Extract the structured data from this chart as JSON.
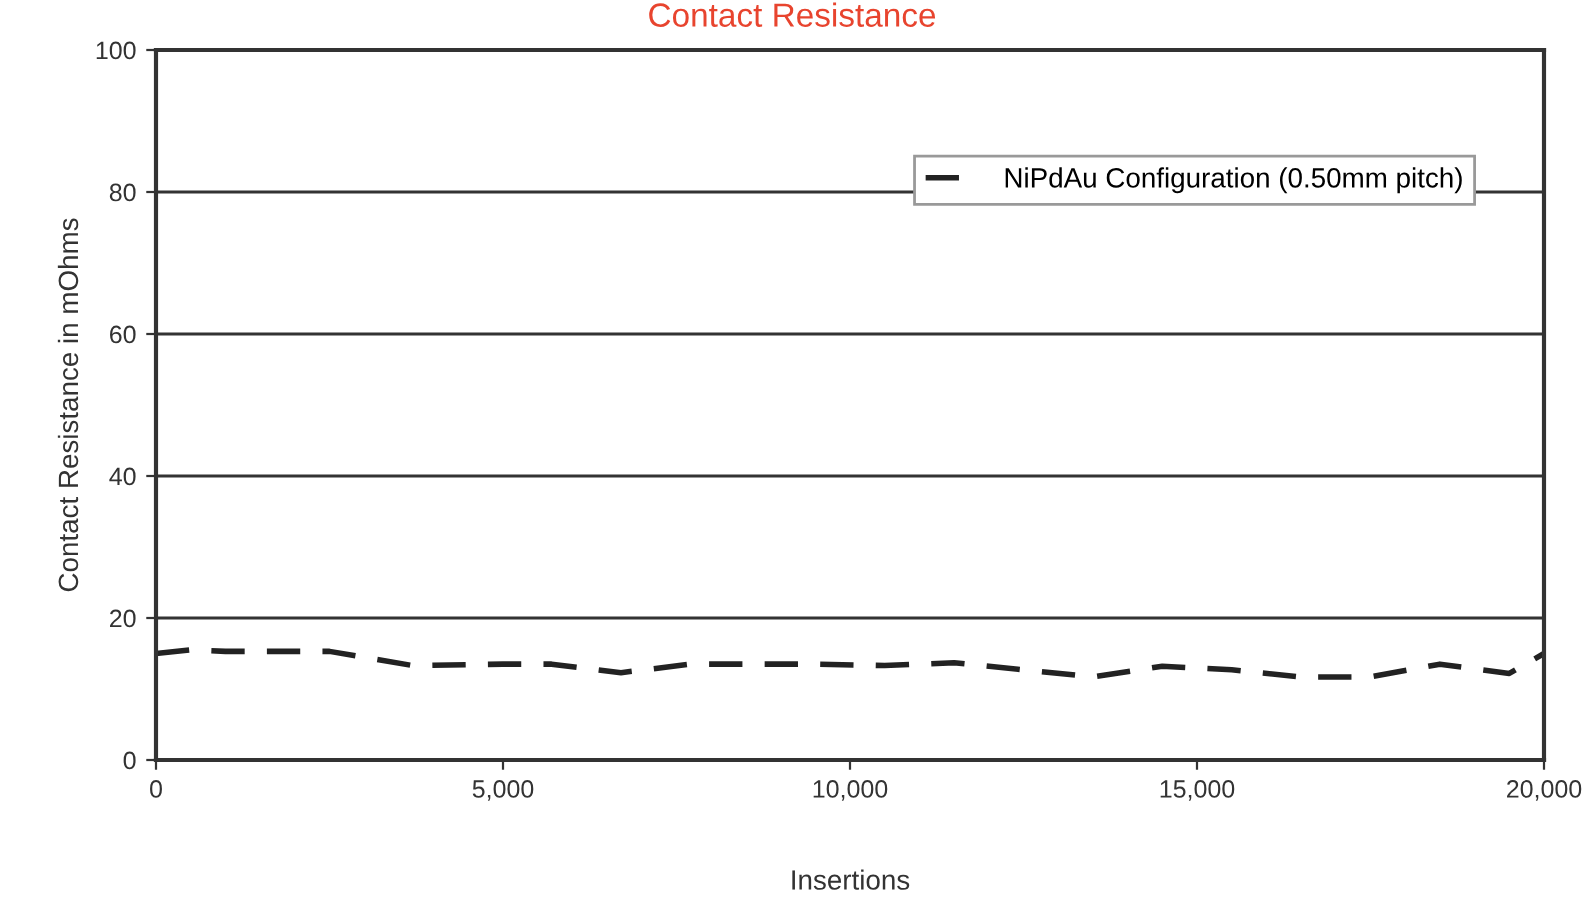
{
  "chart_data": {
    "type": "line",
    "title": "Contact Resistance",
    "xlabel": "Insertions",
    "ylabel": "Contact Resistance in mOhms",
    "x": [
      0,
      500,
      1000,
      2500,
      3700,
      5000,
      5700,
      6700,
      7700,
      9500,
      10500,
      11500,
      12500,
      13500,
      14500,
      15500,
      16500,
      17500,
      18500,
      19500,
      20000
    ],
    "series": [
      {
        "name": "NiPdAu Configuration (0.50mm pitch)",
        "color": "#222222",
        "values": [
          15,
          15.5,
          15.3,
          15.3,
          13.3,
          13.5,
          13.5,
          12.3,
          13.5,
          13.5,
          13.3,
          13.7,
          12.7,
          11.7,
          13.2,
          12.7,
          11.7,
          11.7,
          13.5,
          12.2,
          15
        ]
      }
    ],
    "xlim": [
      0,
      20000
    ],
    "ylim": [
      0,
      100
    ],
    "xticks": [
      {
        "value": 0,
        "label": "0"
      },
      {
        "value": 5000,
        "label": "5,000"
      },
      {
        "value": 10000,
        "label": "10,000"
      },
      {
        "value": 15000,
        "label": "15,000"
      },
      {
        "value": 20000,
        "label": "20,000"
      }
    ],
    "yticks": [
      0,
      20,
      40,
      60,
      80,
      100
    ],
    "grid": "y",
    "legend": "top right",
    "line_style": "dashed",
    "marker": "none"
  }
}
